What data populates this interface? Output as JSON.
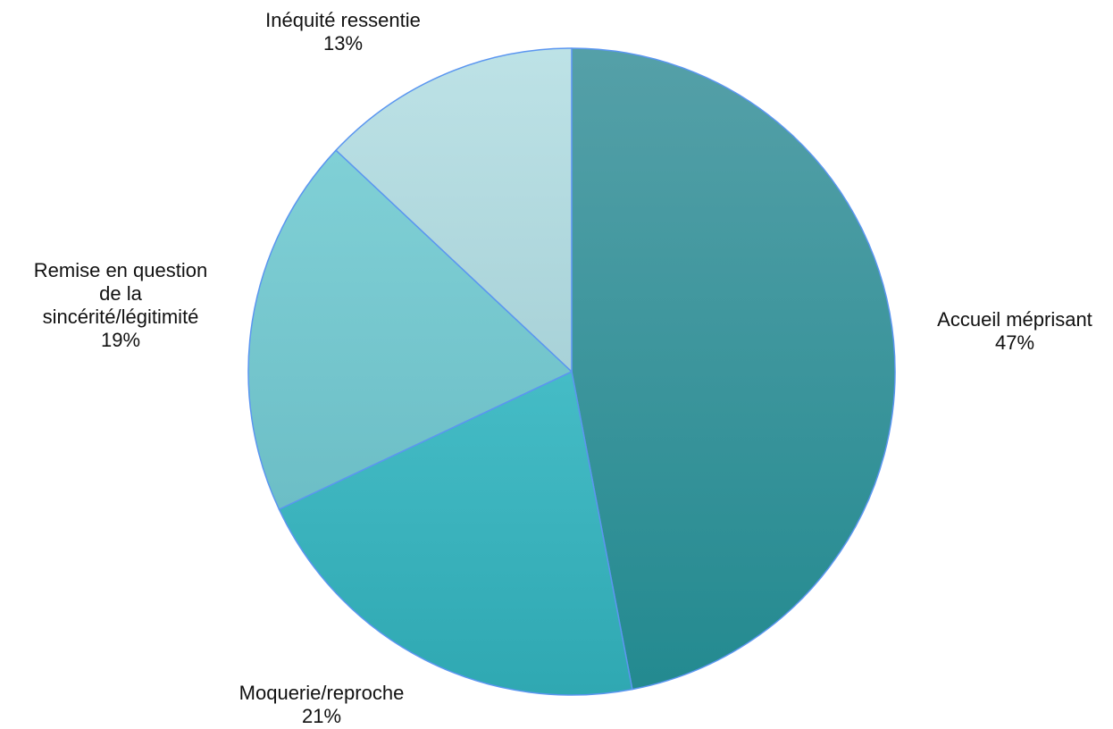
{
  "chart_data": {
    "type": "pie",
    "title": "",
    "categories": [
      "Accueil méprisant",
      "Moquerie/reproche",
      "Remise en question de la sincérité/légitimité",
      "Inéquité ressentie"
    ],
    "values": [
      47,
      21,
      19,
      13
    ],
    "value_labels": [
      "47%",
      "21%",
      "19%",
      "13%"
    ],
    "label_lines": [
      [
        "Accueil méprisant"
      ],
      [
        "Moquerie/reproche"
      ],
      [
        "Remise en question",
        "de la",
        "sincérité/légitimité"
      ],
      [
        "Inéquité ressentie"
      ]
    ],
    "colors": [
      [
        "#55a0a8",
        "#238a90"
      ],
      [
        "#45bcc6",
        "#2fa8b2"
      ],
      [
        "#80d0d6",
        "#6cbec6"
      ],
      [
        "#bde2e6",
        "#a8d2d8"
      ]
    ],
    "start_angle": "12 o'clock",
    "direction": "clockwise",
    "legend": "none",
    "slice_border_color": "#5b96f0"
  }
}
